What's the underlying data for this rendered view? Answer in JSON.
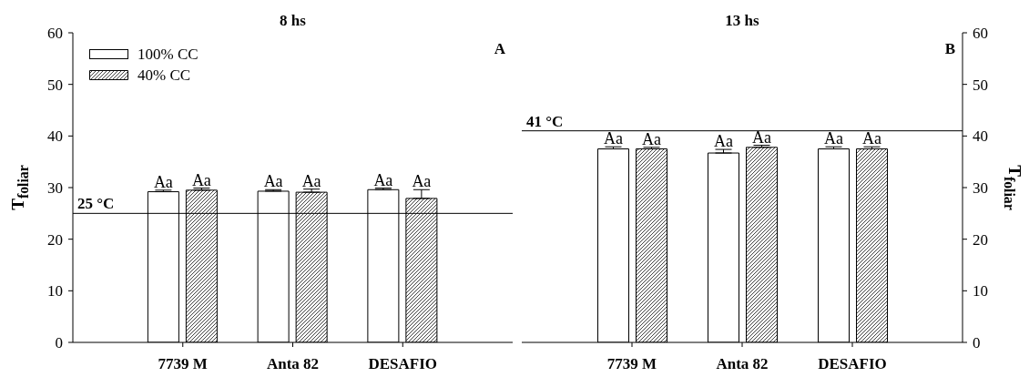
{
  "chart_data": [
    {
      "type": "bar",
      "title": "8 hs",
      "ylabel": "T$_{foliar}$",
      "categories": [
        "7739 M",
        "Anta 82",
        "DESAFIO"
      ],
      "series": [
        {
          "name": "100% CC",
          "color": "#ffffff",
          "values": [
            29.2,
            29.3,
            29.6
          ],
          "errors": [
            [
              29.2,
              29.5
            ],
            [
              29.3,
              29.6
            ],
            [
              29.6,
              29.9
            ]
          ],
          "value_labels": [
            "Aa",
            "Aa",
            "Aa"
          ]
        },
        {
          "name": "40% CC",
          "color": "#000000",
          "values": [
            29.5,
            29.1,
            27.9
          ],
          "errors": [
            [
              29.5,
              29.9
            ],
            [
              29.1,
              29.7
            ],
            [
              27.9,
              29.6
            ]
          ],
          "value_labels": [
            "Aa",
            "Aa",
            "Aa"
          ]
        }
      ],
      "ylim": [
        0,
        60
      ],
      "yticks": [
        0,
        10,
        20,
        30,
        40,
        50,
        60
      ],
      "ref_lines": [
        {
          "axis": "y",
          "value": 25,
          "label": "25 °C"
        }
      ],
      "annotations": [
        "A"
      ],
      "legend": "top left"
    },
    {
      "type": "bar",
      "title": "13 hs",
      "y2label": "T$_{foliar}$",
      "categories": [
        "7739 M",
        "Anta 82",
        "DESAFIO"
      ],
      "series": [
        {
          "color": "#ffffff",
          "axis": "y2",
          "values": [
            37.5,
            36.7,
            37.5
          ],
          "errors": [
            [
              37.5,
              37.9
            ],
            [
              36.7,
              37.4
            ],
            [
              37.5,
              37.9
            ]
          ],
          "value_labels": [
            "Aa",
            "Aa",
            "Aa"
          ]
        },
        {
          "color": "#000000",
          "axis": "y2",
          "values": [
            37.5,
            37.8,
            37.5
          ],
          "errors": [
            [
              37.5,
              37.8
            ],
            [
              37.8,
              38.2
            ],
            [
              37.5,
              37.9
            ]
          ],
          "value_labels": [
            "Aa",
            "Aa",
            "Aa"
          ]
        }
      ],
      "y2lim": [
        0,
        60
      ],
      "y2ticks": [
        0,
        10,
        20,
        30,
        40,
        50,
        60
      ],
      "ref_lines": [
        {
          "axis": "y2",
          "value": 41,
          "label": "41 °C"
        }
      ],
      "annotations": [
        "B"
      ]
    }
  ]
}
